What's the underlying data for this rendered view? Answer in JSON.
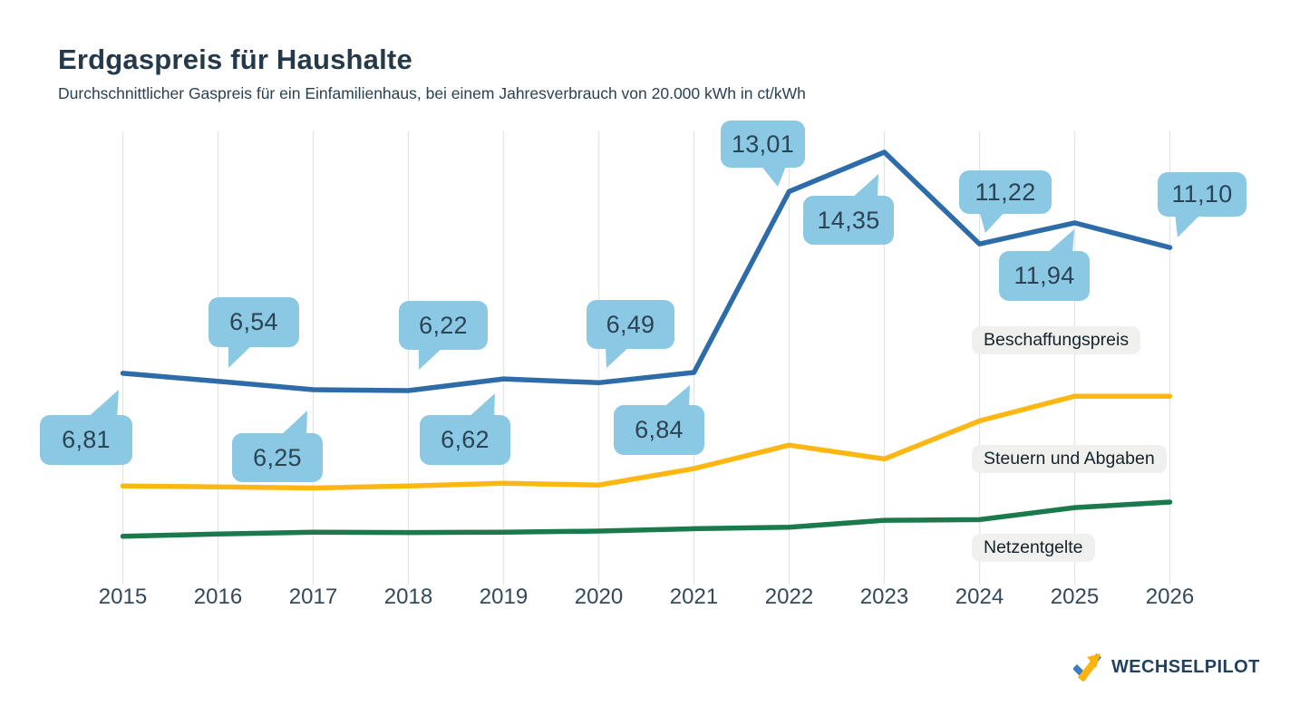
{
  "header": {
    "title": "Erdgaspreis für Haushalte",
    "subtitle": "Durchschnittlicher Gaspreis für ein Einfamilienhaus, bei einem Jahresverbrauch von 20.000 kWh in ct/kWh"
  },
  "footer": {
    "brand": "WECHSELPILOT"
  },
  "colors": {
    "title_navy": "#24394A",
    "axis_label": "#33495B",
    "bubble_fill": "#8AC8E4",
    "bubble_text": "#2C4354",
    "gridline": "#E4E4E4",
    "legend_pill_bg": "#F0F0EF",
    "logo_blue": "#3C7DC1",
    "logo_yellow": "#FBB40F"
  },
  "chart_data": {
    "type": "line",
    "title": "Erdgaspreis für Haushalte",
    "subtitle": "Durchschnittlicher Gaspreis für ein Einfamilienhaus, bei einem Jahresverbrauch von 20.000 kWh in ct/kWh",
    "xlabel": "",
    "ylabel": "ct/kWh",
    "ylim": [
      0,
      15.1
    ],
    "grid": "vertical-only",
    "legend_position": "right-inline",
    "categories": [
      "2015",
      "2016",
      "2017",
      "2018",
      "2019",
      "2020",
      "2021",
      "2022",
      "2023",
      "2024",
      "2025",
      "2026"
    ],
    "bubble_color": "#8AC8E4",
    "series": [
      {
        "name": "Beschaffungspreis",
        "color": "#2D6CA9",
        "values": [
          6.81,
          6.54,
          6.25,
          6.22,
          6.62,
          6.49,
          6.84,
          13.01,
          14.35,
          11.22,
          11.94,
          11.1
        ]
      },
      {
        "name": "Steuern und Abgaben",
        "color": "#FDB713",
        "values": [
          2.97,
          2.94,
          2.9,
          2.97,
          3.06,
          3.0,
          3.56,
          4.36,
          3.89,
          5.19,
          6.03,
          6.03
        ]
      },
      {
        "name": "Netzentgelte",
        "color": "#1A7A4C",
        "values": [
          1.25,
          1.33,
          1.39,
          1.38,
          1.39,
          1.43,
          1.51,
          1.56,
          1.8,
          1.82,
          2.23,
          2.42
        ]
      }
    ],
    "annotations": [
      {
        "year": "2015",
        "text": "6,81"
      },
      {
        "year": "2016",
        "text": "6,54"
      },
      {
        "year": "2017",
        "text": "6,25"
      },
      {
        "year": "2018",
        "text": "6,22"
      },
      {
        "year": "2019",
        "text": "6,62"
      },
      {
        "year": "2020",
        "text": "6,49"
      },
      {
        "year": "2021",
        "text": "6,84"
      },
      {
        "year": "2022",
        "text": "13,01"
      },
      {
        "year": "2023",
        "text": "14,35"
      },
      {
        "year": "2024",
        "text": "11,22"
      },
      {
        "year": "2025",
        "text": "11,94"
      },
      {
        "year": "2026",
        "text": "11,10"
      }
    ]
  }
}
